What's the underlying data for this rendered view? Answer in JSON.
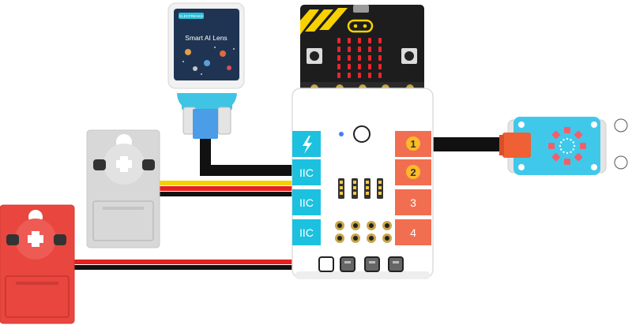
{
  "lens": {
    "title": "Smart AI Lens",
    "brand": "ELECFREAKS"
  },
  "board": {
    "power_icon": "lightning-bolt-icon",
    "iic_ports": [
      "IIC",
      "IIC",
      "IIC"
    ],
    "motor_ports": [
      "1",
      "2",
      "3",
      "4"
    ],
    "selected_ports": [
      "1",
      "2"
    ]
  },
  "colors": {
    "port_blue": "#1cc1e0",
    "port_orange": "#f26e50",
    "port_badge_yellow": "#fcbb27",
    "servo_grey": "#d8d8d8",
    "servo_red": "#e8463f",
    "ring_base": "#40c8ea",
    "ring_led": "#f25f6c",
    "connector_orange": "#ef6034",
    "wire_black": "#111111",
    "wire_red": "#e42020",
    "wire_yellow": "#f5d000"
  }
}
